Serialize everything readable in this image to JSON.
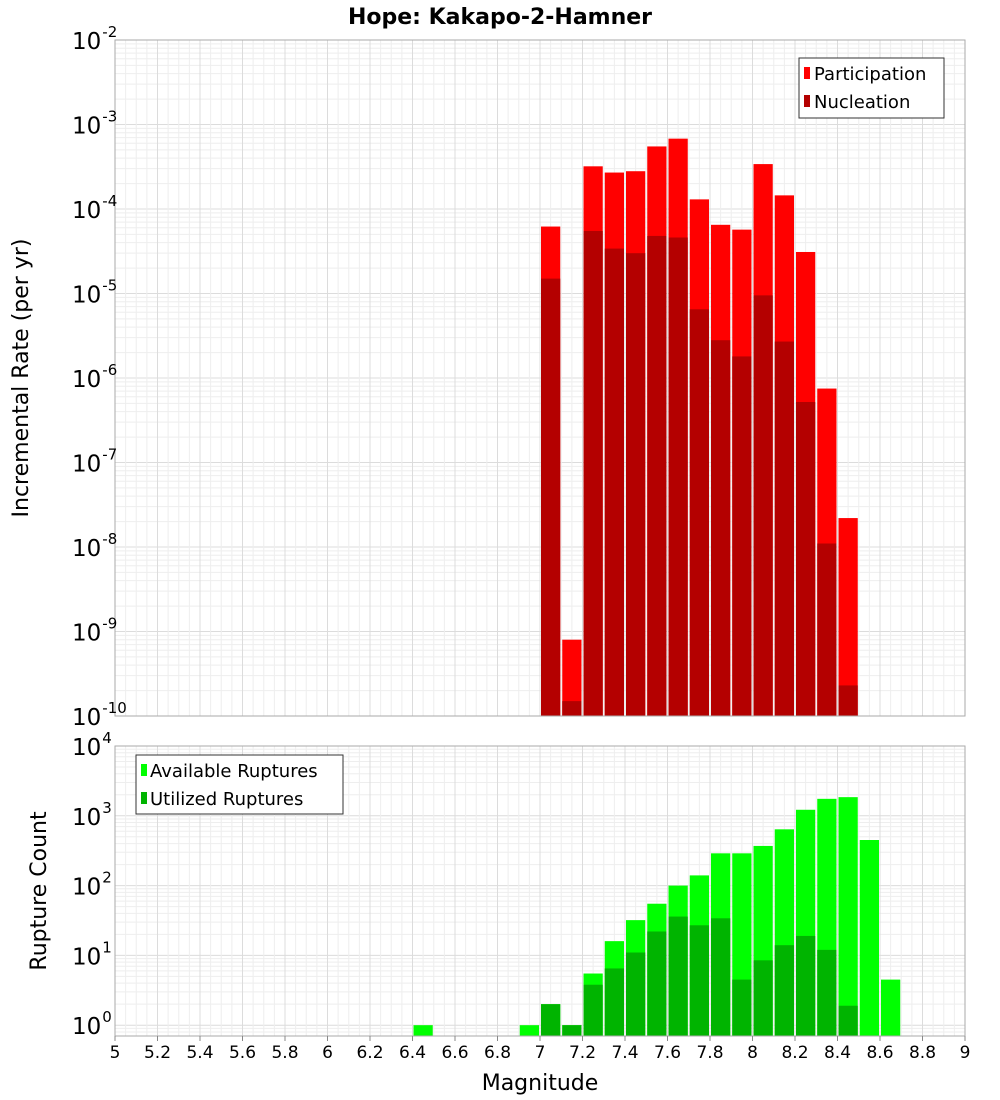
{
  "chart_data": [
    {
      "type": "bar",
      "title": "Hope: Kakapo-2-Hamner",
      "xlabel": "Magnitude",
      "ylabel": "Incremental Rate (per yr)",
      "y_scale": "log",
      "xlim": [
        5,
        9
      ],
      "ylim": [
        1e-10,
        0.01
      ],
      "y_tick_exponents": [
        "-10",
        "-9",
        "-8",
        "-7",
        "-6",
        "-5",
        "-4",
        "-3",
        "-2"
      ],
      "grid": true,
      "legend_position": "top-right",
      "x": [
        7.05,
        7.15,
        7.25,
        7.35,
        7.45,
        7.55,
        7.65,
        7.75,
        7.85,
        7.95,
        8.05,
        8.15,
        8.25,
        8.35,
        8.45
      ],
      "series": [
        {
          "name": "Participation",
          "color": "#ff0000",
          "values": [
            6.2e-05,
            8e-10,
            0.00032,
            0.00027,
            0.00028,
            0.00055,
            0.00068,
            0.00013,
            6.5e-05,
            5.7e-05,
            0.00034,
            0.000145,
            3.1e-05,
            7.5e-07,
            2.2e-08
          ]
        },
        {
          "name": "Nucleation",
          "color": "#b40000",
          "values": [
            1.5e-05,
            1.5e-10,
            5.5e-05,
            3.4e-05,
            3e-05,
            4.8e-05,
            4.6e-05,
            6.5e-06,
            2.8e-06,
            1.8e-06,
            9.5e-06,
            2.7e-06,
            5.2e-07,
            1.1e-08,
            2.3e-10
          ]
        }
      ]
    },
    {
      "type": "bar",
      "xlabel": "Magnitude",
      "ylabel": "Rupture Count",
      "y_scale": "log",
      "xlim": [
        5,
        9
      ],
      "ylim": [
        0.7,
        10000
      ],
      "y_tick_exponents": [
        "0",
        "1",
        "2",
        "3",
        "4"
      ],
      "x_ticks": [
        "5",
        "5.2",
        "5.4",
        "5.6",
        "5.8",
        "6",
        "6.2",
        "6.4",
        "6.6",
        "6.8",
        "7",
        "7.2",
        "7.4",
        "7.6",
        "7.8",
        "8",
        "8.2",
        "8.4",
        "8.6",
        "8.8",
        "9"
      ],
      "grid": true,
      "legend_position": "top-left",
      "x": [
        6.45,
        6.95,
        7.05,
        7.15,
        7.25,
        7.35,
        7.45,
        7.55,
        7.65,
        7.75,
        7.85,
        7.95,
        8.05,
        8.15,
        8.25,
        8.35,
        8.45,
        8.55,
        8.65
      ],
      "series": [
        {
          "name": "Available Ruptures",
          "color": "#00ff00",
          "values": [
            1,
            1,
            2,
            1,
            5.5,
            16,
            32,
            55,
            100,
            140,
            290,
            290,
            370,
            640,
            1220,
            1750,
            1850,
            450,
            4.5
          ]
        },
        {
          "name": "Utilized Ruptures",
          "color": "#00b400",
          "values": [
            0,
            0,
            2,
            1,
            3.8,
            6.5,
            11,
            22,
            36,
            27,
            34,
            4.5,
            8.5,
            14,
            19,
            12,
            1.9,
            0,
            0
          ]
        }
      ]
    }
  ]
}
